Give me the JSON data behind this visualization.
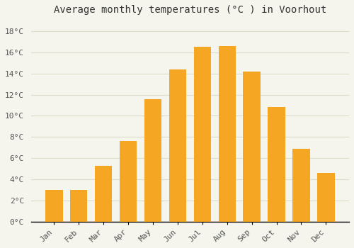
{
  "title": "Average monthly temperatures (°C ) in Voorhout",
  "months": [
    "Jan",
    "Feb",
    "Mar",
    "Apr",
    "May",
    "Jun",
    "Jul",
    "Aug",
    "Sep",
    "Oct",
    "Nov",
    "Dec"
  ],
  "values": [
    3.0,
    3.0,
    5.3,
    7.6,
    11.6,
    14.4,
    16.5,
    16.6,
    14.2,
    10.8,
    6.9,
    4.6
  ],
  "bar_color": "#F5A623",
  "bar_edge_color": "#E8950A",
  "background_color": "#F5F5EE",
  "grid_color": "#DDDDCC",
  "ytick_labels": [
    "0°C",
    "2°C",
    "4°C",
    "6°C",
    "8°C",
    "10°C",
    "12°C",
    "14°C",
    "16°C",
    "18°C"
  ],
  "ytick_values": [
    0,
    2,
    4,
    6,
    8,
    10,
    12,
    14,
    16,
    18
  ],
  "ylim": [
    0,
    19
  ],
  "title_fontsize": 10,
  "tick_fontsize": 8,
  "font_family": "monospace"
}
